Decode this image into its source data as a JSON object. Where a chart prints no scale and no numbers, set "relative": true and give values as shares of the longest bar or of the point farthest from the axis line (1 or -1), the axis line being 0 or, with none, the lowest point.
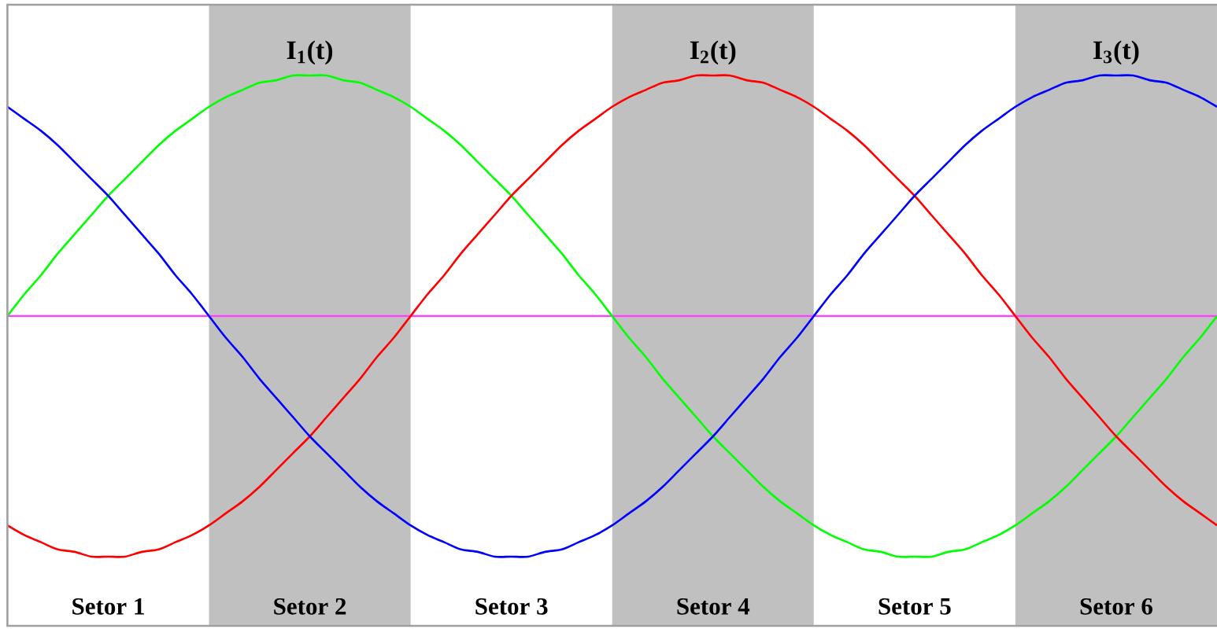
{
  "chart_data": {
    "type": "line",
    "relative": true,
    "line_style": "solid",
    "categories": [
      null,
      null,
      null,
      null,
      null,
      null,
      null,
      null,
      null,
      null,
      null,
      null,
      null,
      null,
      null,
      null,
      null,
      null,
      null,
      null,
      null,
      null,
      null,
      null,
      null,
      null,
      null,
      null,
      null,
      null,
      null,
      null,
      null,
      null,
      null,
      null,
      null,
      null,
      null,
      null,
      null,
      null,
      null,
      null,
      null,
      null,
      null,
      null,
      null,
      null,
      null,
      null,
      null,
      null,
      null,
      null,
      null,
      null,
      null,
      null,
      null,
      null,
      null,
      null,
      null,
      null,
      null,
      null,
      null,
      null,
      null,
      null,
      null
    ],
    "series": [
      {
        "name": "I$_{1}$(t)",
        "color": "#00ff00",
        "values": [
          0,
          0.09,
          0.17,
          0.26,
          0.34,
          0.42,
          0.5,
          0.57,
          0.64,
          0.71,
          0.77,
          0.82,
          0.87,
          0.91,
          0.94,
          0.97,
          0.98,
          1,
          1,
          1,
          0.98,
          0.97,
          0.94,
          0.91,
          0.87,
          0.82,
          0.77,
          0.71,
          0.64,
          0.57,
          0.5,
          0.42,
          0.34,
          0.26,
          0.17,
          0.09,
          0,
          -0.09,
          -0.17,
          -0.26,
          -0.34,
          -0.42,
          -0.5,
          -0.57,
          -0.64,
          -0.71,
          -0.77,
          -0.82,
          -0.87,
          -0.91,
          -0.94,
          -0.97,
          -0.98,
          -1,
          -1,
          -1,
          -0.98,
          -0.97,
          -0.94,
          -0.91,
          -0.87,
          -0.82,
          -0.77,
          -0.71,
          -0.64,
          -0.57,
          -0.5,
          -0.42,
          -0.34,
          -0.26,
          -0.17,
          -0.09,
          0
        ]
      },
      {
        "name": "I$_{2}$(t)",
        "color": "#ff0000",
        "values": [
          -0.87,
          -0.91,
          -0.94,
          -0.97,
          -0.98,
          -1,
          -1,
          -1,
          -0.98,
          -0.97,
          -0.94,
          -0.91,
          -0.87,
          -0.82,
          -0.77,
          -0.71,
          -0.64,
          -0.57,
          -0.5,
          -0.42,
          -0.34,
          -0.26,
          -0.17,
          -0.09,
          0,
          0.09,
          0.17,
          0.26,
          0.34,
          0.42,
          0.5,
          0.57,
          0.64,
          0.71,
          0.77,
          0.82,
          0.87,
          0.91,
          0.94,
          0.97,
          0.98,
          1,
          1,
          1,
          0.98,
          0.97,
          0.94,
          0.91,
          0.87,
          0.82,
          0.77,
          0.71,
          0.64,
          0.57,
          0.5,
          0.42,
          0.34,
          0.26,
          0.17,
          0.09,
          0,
          -0.09,
          -0.17,
          -0.26,
          -0.34,
          -0.42,
          -0.5,
          -0.57,
          -0.64,
          -0.71,
          -0.77,
          -0.82,
          -0.87
        ]
      },
      {
        "name": "I$_{3}$(t)",
        "color": "#0000ff",
        "values": [
          0.87,
          0.82,
          0.77,
          0.71,
          0.64,
          0.57,
          0.5,
          0.42,
          0.34,
          0.26,
          0.17,
          0.09,
          0,
          -0.09,
          -0.17,
          -0.26,
          -0.34,
          -0.42,
          -0.5,
          -0.57,
          -0.64,
          -0.71,
          -0.77,
          -0.82,
          -0.87,
          -0.91,
          -0.94,
          -0.97,
          -0.98,
          -1,
          -1,
          -1,
          -0.98,
          -0.97,
          -0.94,
          -0.91,
          -0.87,
          -0.82,
          -0.77,
          -0.71,
          -0.64,
          -0.57,
          -0.5,
          -0.42,
          -0.34,
          -0.26,
          -0.17,
          -0.09,
          0,
          0.09,
          0.17,
          0.26,
          0.34,
          0.42,
          0.5,
          0.57,
          0.64,
          0.71,
          0.77,
          0.82,
          0.87,
          0.91,
          0.94,
          0.97,
          0.98,
          1,
          1,
          1,
          0.98,
          0.97,
          0.94,
          0.91,
          0.87
        ]
      }
    ],
    "ref_lines": [
      {
        "axis": "y",
        "value": 0,
        "color": "#ff40ff"
      }
    ],
    "annotations": [
      "Setor 1",
      "Setor 2",
      "Setor 3",
      "Setor 4",
      "Setor 5",
      "Setor 6"
    ]
  }
}
